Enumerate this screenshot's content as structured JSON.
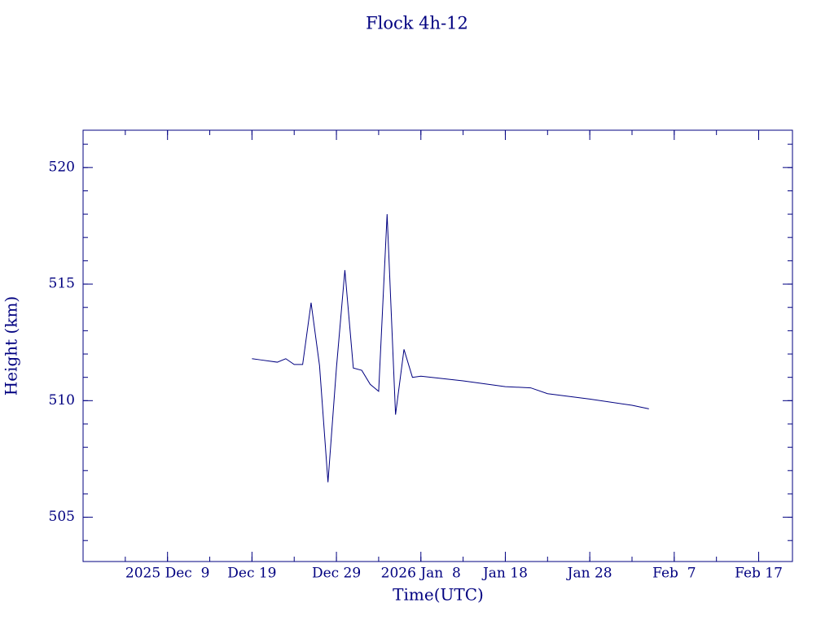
{
  "chart_data": {
    "type": "line",
    "title": "Flock 4h-12",
    "x_label": "Time(UTC)",
    "y_label": "Height (km)",
    "x": [
      "2025-12-19",
      "2025-12-20",
      "2025-12-21",
      "2025-12-22",
      "2025-12-23",
      "2025-12-24",
      "2025-12-25",
      "2025-12-26",
      "2025-12-27",
      "2025-12-28",
      "2025-12-29",
      "2025-12-30",
      "2025-12-31",
      "2026-01-01",
      "2026-01-02",
      "2026-01-03",
      "2026-01-04",
      "2026-01-05",
      "2026-01-06",
      "2026-01-07",
      "2026-01-08",
      "2026-01-13",
      "2026-01-18",
      "2026-01-21",
      "2026-01-23",
      "2026-01-28",
      "2026-02-02",
      "2026-02-04"
    ],
    "series": [
      {
        "name": "Height",
        "color": "#000080",
        "values": [
          511.8,
          511.75,
          511.7,
          511.65,
          511.8,
          511.55,
          511.55,
          514.2,
          511.5,
          506.5,
          511.4,
          515.6,
          511.4,
          511.3,
          510.7,
          510.4,
          518.0,
          509.4,
          512.2,
          511.0,
          511.05,
          510.85,
          510.6,
          510.55,
          510.3,
          510.07,
          509.8,
          509.65
        ]
      }
    ],
    "xlim": [
      "2025-11-29",
      "2026-02-21"
    ],
    "xticks": [
      {
        "value": "2025-12-09",
        "label": "2025 Dec  9"
      },
      {
        "value": "2025-12-19",
        "label": "Dec 19"
      },
      {
        "value": "2025-12-29",
        "label": "Dec 29"
      },
      {
        "value": "2026-01-08",
        "label": "2026 Jan  8"
      },
      {
        "value": "2026-01-18",
        "label": "Jan 18"
      },
      {
        "value": "2026-01-28",
        "label": "Jan 28"
      },
      {
        "value": "2026-02-07",
        "label": "Feb  7"
      },
      {
        "value": "2026-02-17",
        "label": "Feb 17"
      }
    ],
    "ylim": [
      503.1,
      521.6
    ],
    "yticks": [
      505,
      510,
      515,
      520
    ],
    "grid": false
  }
}
